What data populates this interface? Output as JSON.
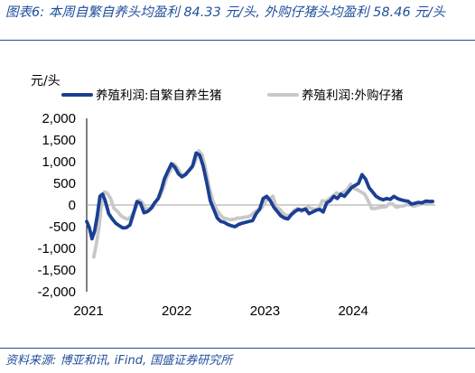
{
  "title": "图表6:  本周自繁自养头均盈利 84.33 元/头,  外购仔猪头均盈利 58.46 元/头",
  "source": "资料来源:  博亚和讯,  iFind,  国盛证券研究所",
  "colors": {
    "series1": "#1b3f94",
    "series2": "#c8c8c8",
    "accent": "#1f4e9c"
  },
  "chart_data": {
    "type": "line",
    "unit_label": "元/头",
    "ylim": [
      -2000,
      2000
    ],
    "yticks": [
      "2,000",
      "1,500",
      "1,000",
      "500",
      "0",
      "-500",
      "-1,000",
      "-1,500",
      "-2,000"
    ],
    "xlim": [
      2021.0,
      2024.95
    ],
    "xticks": [
      "2021",
      "2022",
      "2023",
      "2024"
    ],
    "legend_position": "top",
    "series": [
      {
        "name": "养殖利润:自繁自养生猪",
        "color": "#1b3f94",
        "x": [
          2021.0,
          2021.03,
          2021.06,
          2021.09,
          2021.12,
          2021.15,
          2021.18,
          2021.21,
          2021.25,
          2021.29,
          2021.33,
          2021.37,
          2021.41,
          2021.45,
          2021.49,
          2021.53,
          2021.57,
          2021.61,
          2021.65,
          2021.69,
          2021.73,
          2021.77,
          2021.81,
          2021.85,
          2021.88,
          2021.92,
          2021.96,
          2022.0,
          2022.04,
          2022.08,
          2022.12,
          2022.16,
          2022.2,
          2022.24,
          2022.28,
          2022.32,
          2022.36,
          2022.4,
          2022.44,
          2022.48,
          2022.52,
          2022.56,
          2022.6,
          2022.64,
          2022.68,
          2022.72,
          2022.76,
          2022.8,
          2022.84,
          2022.88,
          2022.92,
          2022.96,
          2023.0,
          2023.04,
          2023.08,
          2023.12,
          2023.16,
          2023.2,
          2023.24,
          2023.28,
          2023.32,
          2023.36,
          2023.4,
          2023.44,
          2023.48,
          2023.52,
          2023.56,
          2023.6,
          2023.64,
          2023.68,
          2023.72,
          2023.76,
          2023.8,
          2023.84,
          2023.88,
          2023.92,
          2023.96,
          2024.0,
          2024.04,
          2024.08,
          2024.12,
          2024.16,
          2024.2,
          2024.24,
          2024.28,
          2024.32,
          2024.36,
          2024.4,
          2024.44,
          2024.48,
          2024.52,
          2024.56,
          2024.6,
          2024.64,
          2024.68,
          2024.72,
          2024.76,
          2024.8,
          2024.84,
          2024.88,
          2024.92
        ],
        "values": [
          -380,
          -520,
          -780,
          -600,
          -250,
          200,
          250,
          100,
          -200,
          -320,
          -420,
          -480,
          -530,
          -520,
          -460,
          -200,
          80,
          40,
          -180,
          -150,
          -80,
          50,
          150,
          380,
          600,
          780,
          950,
          870,
          720,
          650,
          700,
          800,
          900,
          1200,
          1150,
          900,
          520,
          100,
          -100,
          -300,
          -380,
          -400,
          -450,
          -480,
          -500,
          -450,
          -420,
          -400,
          -380,
          -360,
          -200,
          -100,
          150,
          200,
          100,
          -50,
          -150,
          -250,
          -300,
          -320,
          -220,
          -150,
          -100,
          -120,
          -90,
          -200,
          -160,
          -120,
          -100,
          -160,
          50,
          100,
          200,
          150,
          250,
          200,
          300,
          400,
          450,
          500,
          700,
          600,
          400,
          300,
          200,
          150,
          120,
          150,
          130,
          200,
          150,
          120,
          100,
          90,
          20,
          40,
          60,
          50,
          90,
          84,
          84
        ],
        "width": 3.8
      },
      {
        "name": "养殖利润:外购仔猪",
        "color": "#c8c8c8",
        "x": [
          2021.08,
          2021.11,
          2021.14,
          2021.17,
          2021.2,
          2021.23,
          2021.27,
          2021.31,
          2021.35,
          2021.39,
          2021.43,
          2021.47,
          2021.51,
          2021.55,
          2021.59,
          2021.63,
          2021.67,
          2021.71,
          2021.75,
          2021.79,
          2021.83,
          2021.87,
          2021.91,
          2021.95,
          2021.99,
          2022.03,
          2022.07,
          2022.11,
          2022.15,
          2022.19,
          2022.23,
          2022.27,
          2022.31,
          2022.35,
          2022.39,
          2022.43,
          2022.47,
          2022.51,
          2022.55,
          2022.59,
          2022.63,
          2022.67,
          2022.71,
          2022.75,
          2022.79,
          2022.83,
          2022.87,
          2022.91,
          2022.95,
          2022.99,
          2023.03,
          2023.07,
          2023.11,
          2023.15,
          2023.19,
          2023.23,
          2023.27,
          2023.31,
          2023.35,
          2023.39,
          2023.43,
          2023.47,
          2023.51,
          2023.55,
          2023.59,
          2023.63,
          2023.67,
          2023.71,
          2023.75,
          2023.79,
          2023.83,
          2023.87,
          2023.91,
          2023.95,
          2023.99,
          2024.03,
          2024.07,
          2024.11,
          2024.15,
          2024.19,
          2024.23,
          2024.27,
          2024.31,
          2024.35,
          2024.39,
          2024.43,
          2024.47,
          2024.51,
          2024.55,
          2024.59,
          2024.63,
          2024.67,
          2024.71,
          2024.75,
          2024.79,
          2024.83,
          2024.87,
          2024.91
        ],
        "values": [
          -1200,
          -900,
          -500,
          50,
          300,
          280,
          150,
          -80,
          -150,
          -250,
          -300,
          -330,
          -250,
          -100,
          120,
          60,
          -100,
          -80,
          -50,
          100,
          200,
          400,
          650,
          800,
          950,
          850,
          700,
          700,
          780,
          850,
          1000,
          1250,
          1150,
          800,
          400,
          100,
          -100,
          -220,
          -300,
          -320,
          -340,
          -330,
          -300,
          -300,
          -280,
          -270,
          -230,
          -150,
          -100,
          -50,
          100,
          150,
          200,
          -50,
          -100,
          -200,
          -250,
          -230,
          -120,
          -80,
          -150,
          -100,
          -50,
          -80,
          -100,
          -80,
          100,
          80,
          150,
          200,
          280,
          250,
          300,
          350,
          480,
          380,
          350,
          300,
          250,
          100,
          -80,
          -80,
          -60,
          -50,
          -40,
          30,
          20,
          -50,
          -30,
          -20,
          10,
          0,
          -30,
          0,
          20,
          40,
          58,
          58
        ],
        "width": 3.8
      }
    ]
  }
}
